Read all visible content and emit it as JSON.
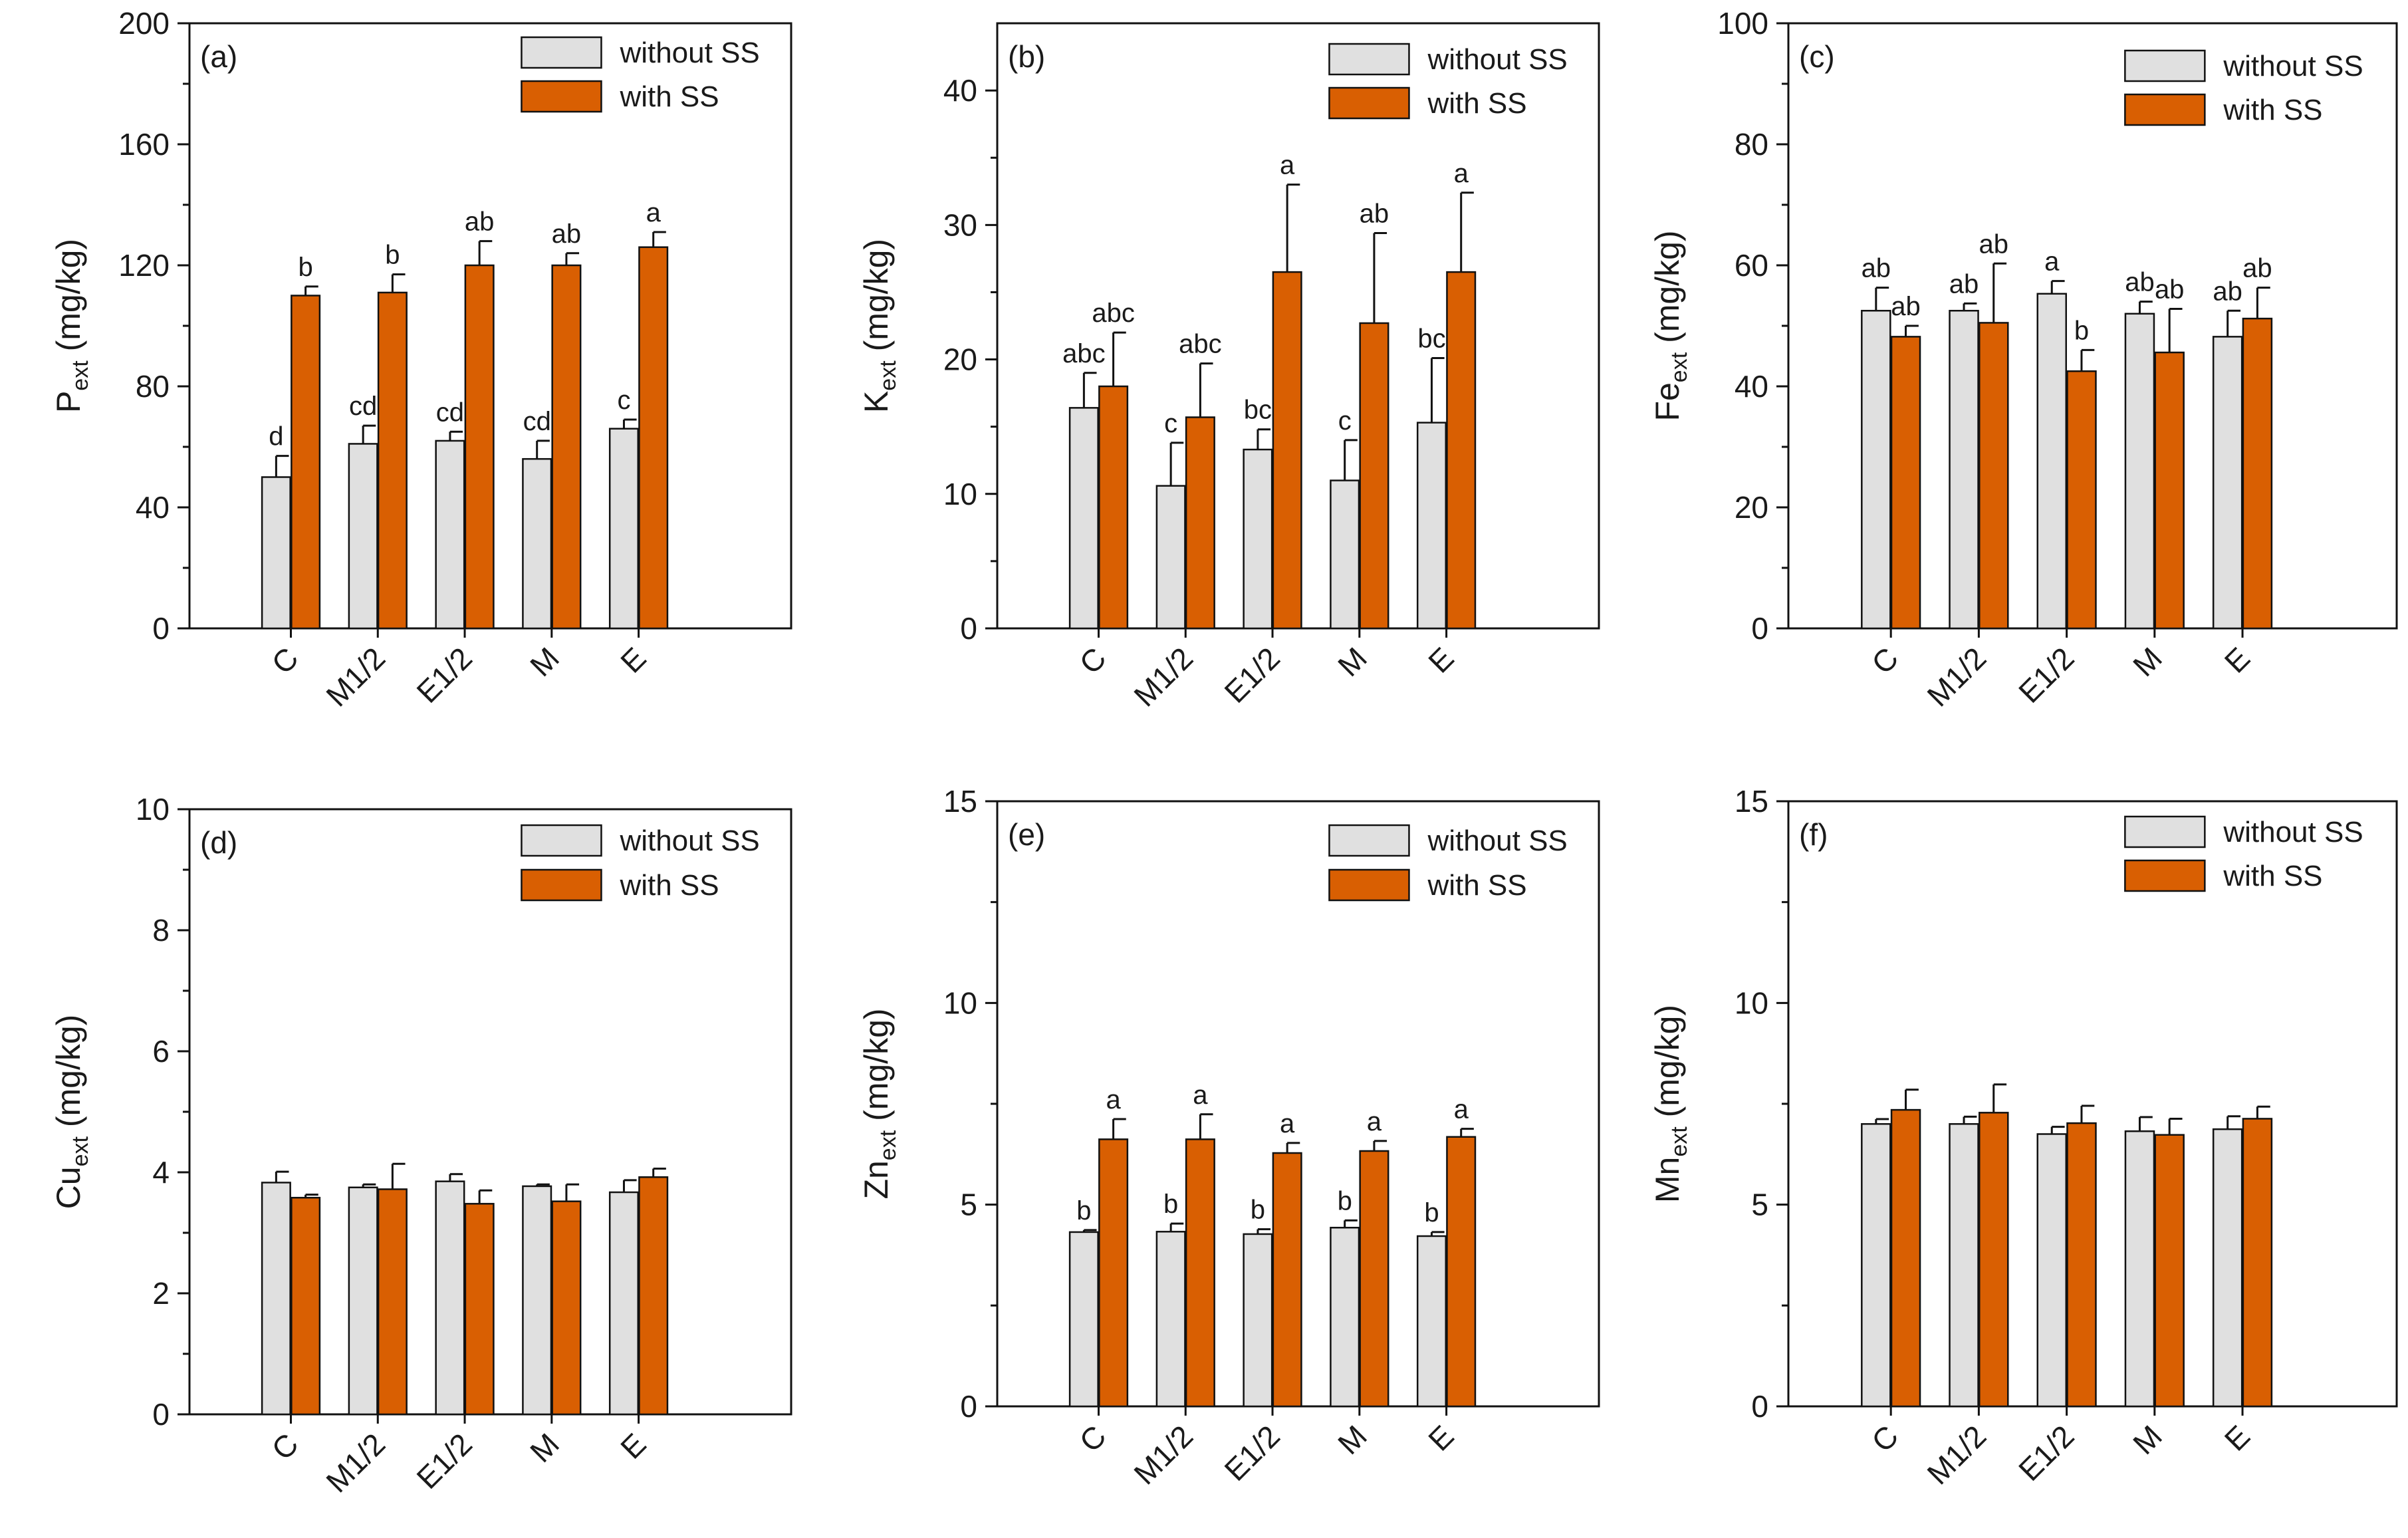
{
  "figure": {
    "legend": {
      "without": "without SS",
      "with": "with SS"
    },
    "colors": {
      "without": "#e0e0e0",
      "with": "#d95f02",
      "stroke": "#111111"
    }
  },
  "chart_data": [
    {
      "type": "bar",
      "panel": "(a)",
      "ylabel_main": "P",
      "ylabel_sub": "ext",
      "ylabel_unit": " (mg/kg)",
      "categories": [
        "C",
        "M1/2",
        "E1/2",
        "M",
        "E"
      ],
      "ylim": [
        0,
        200
      ],
      "yticks": [
        0,
        40,
        80,
        120,
        160,
        200
      ],
      "series": [
        {
          "name": "without SS",
          "values": [
            50,
            61,
            62,
            56,
            66
          ],
          "errors": [
            7,
            6,
            3,
            6,
            3
          ],
          "letters": [
            "d",
            "cd",
            "cd",
            "cd",
            "c"
          ]
        },
        {
          "name": "with SS",
          "values": [
            110,
            111,
            120,
            120,
            126
          ],
          "errors": [
            3,
            6,
            8,
            4,
            5
          ],
          "letters": [
            "b",
            "b",
            "ab",
            "ab",
            "a"
          ]
        }
      ]
    },
    {
      "type": "bar",
      "panel": "(b)",
      "ylabel_main": "K",
      "ylabel_sub": "ext",
      "ylabel_unit": " (mg/kg)",
      "categories": [
        "C",
        "M1/2",
        "E1/2",
        "M",
        "E"
      ],
      "ylim": [
        0,
        45
      ],
      "yticks": [
        0,
        10,
        20,
        30,
        40
      ],
      "series": [
        {
          "name": "without SS",
          "values": [
            16.4,
            10.6,
            13.3,
            11.0,
            15.3
          ],
          "errors": [
            2.6,
            3.2,
            1.5,
            3.0,
            4.8
          ],
          "letters": [
            "abc",
            "c",
            "bc",
            "c",
            "bc"
          ]
        },
        {
          "name": "with SS",
          "values": [
            18.0,
            15.7,
            26.5,
            22.7,
            26.5
          ],
          "errors": [
            4.0,
            4.0,
            6.5,
            6.7,
            5.9
          ],
          "letters": [
            "abc",
            "abc",
            "a",
            "ab",
            "a"
          ]
        }
      ]
    },
    {
      "type": "bar",
      "panel": "(c)",
      "ylabel_main": "Fe",
      "ylabel_sub": "ext",
      "ylabel_unit": " (mg/kg)",
      "categories": [
        "C",
        "M1/2",
        "E1/2",
        "M",
        "E"
      ],
      "ylim": [
        0,
        100
      ],
      "yticks": [
        0,
        20,
        40,
        60,
        80,
        100
      ],
      "series": [
        {
          "name": "without SS",
          "values": [
            52.5,
            52.5,
            55.3,
            52.0,
            48.2
          ],
          "errors": [
            3.8,
            1.2,
            2.1,
            2.0,
            4.3
          ],
          "letters": [
            "ab",
            "ab",
            "a",
            "ab",
            "ab"
          ]
        },
        {
          "name": "with SS",
          "values": [
            48.2,
            50.5,
            42.5,
            45.6,
            51.2
          ],
          "errors": [
            1.8,
            9.8,
            3.5,
            7.2,
            5.1
          ],
          "letters": [
            "ab",
            "ab",
            "b",
            "ab",
            "ab"
          ]
        }
      ]
    },
    {
      "type": "bar",
      "panel": "(d)",
      "ylabel_main": "Cu",
      "ylabel_sub": "ext",
      "ylabel_unit": " (mg/kg)",
      "categories": [
        "C",
        "M1/2",
        "E1/2",
        "M",
        "E"
      ],
      "ylim": [
        0,
        10
      ],
      "yticks": [
        0,
        2,
        4,
        6,
        8,
        10
      ],
      "series": [
        {
          "name": "without SS",
          "values": [
            3.83,
            3.75,
            3.85,
            3.77,
            3.67
          ],
          "errors": [
            0.18,
            0.05,
            0.12,
            0.03,
            0.2
          ],
          "letters": [
            "",
            "",
            "",
            "",
            ""
          ]
        },
        {
          "name": "with SS",
          "values": [
            3.58,
            3.72,
            3.48,
            3.52,
            3.92
          ],
          "errors": [
            0.05,
            0.42,
            0.22,
            0.28,
            0.14
          ],
          "letters": [
            "",
            "",
            "",
            "",
            ""
          ]
        }
      ]
    },
    {
      "type": "bar",
      "panel": "(e)",
      "ylabel_main": "Zn",
      "ylabel_sub": "ext",
      "ylabel_unit": " (mg/kg)",
      "categories": [
        "C",
        "M1/2",
        "E1/2",
        "M",
        "E"
      ],
      "ylim": [
        0,
        15
      ],
      "yticks": [
        0,
        5,
        10,
        15
      ],
      "series": [
        {
          "name": "without SS",
          "values": [
            4.32,
            4.33,
            4.27,
            4.43,
            4.22
          ],
          "errors": [
            0.05,
            0.2,
            0.12,
            0.18,
            0.1
          ],
          "letters": [
            "b",
            "b",
            "b",
            "b",
            "b"
          ]
        },
        {
          "name": "with SS",
          "values": [
            6.62,
            6.62,
            6.28,
            6.33,
            6.68
          ],
          "errors": [
            0.5,
            0.62,
            0.25,
            0.25,
            0.2
          ],
          "letters": [
            "a",
            "a",
            "a",
            "a",
            "a"
          ]
        }
      ]
    },
    {
      "type": "bar",
      "panel": "(f)",
      "ylabel_main": "Mn",
      "ylabel_sub": "ext",
      "ylabel_unit": " (mg/kg)",
      "categories": [
        "C",
        "M1/2",
        "E1/2",
        "M",
        "E"
      ],
      "ylim": [
        0,
        15
      ],
      "yticks": [
        0,
        5,
        10,
        15
      ],
      "series": [
        {
          "name": "without SS",
          "values": [
            7.0,
            7.0,
            6.75,
            6.82,
            6.87
          ],
          "errors": [
            0.12,
            0.18,
            0.18,
            0.35,
            0.32
          ],
          "letters": [
            "",
            "",
            "",
            "",
            ""
          ]
        },
        {
          "name": "with SS",
          "values": [
            7.35,
            7.28,
            7.02,
            6.73,
            7.13
          ],
          "errors": [
            0.5,
            0.7,
            0.43,
            0.4,
            0.3
          ],
          "letters": [
            "",
            "",
            "",
            "",
            ""
          ]
        }
      ]
    }
  ]
}
